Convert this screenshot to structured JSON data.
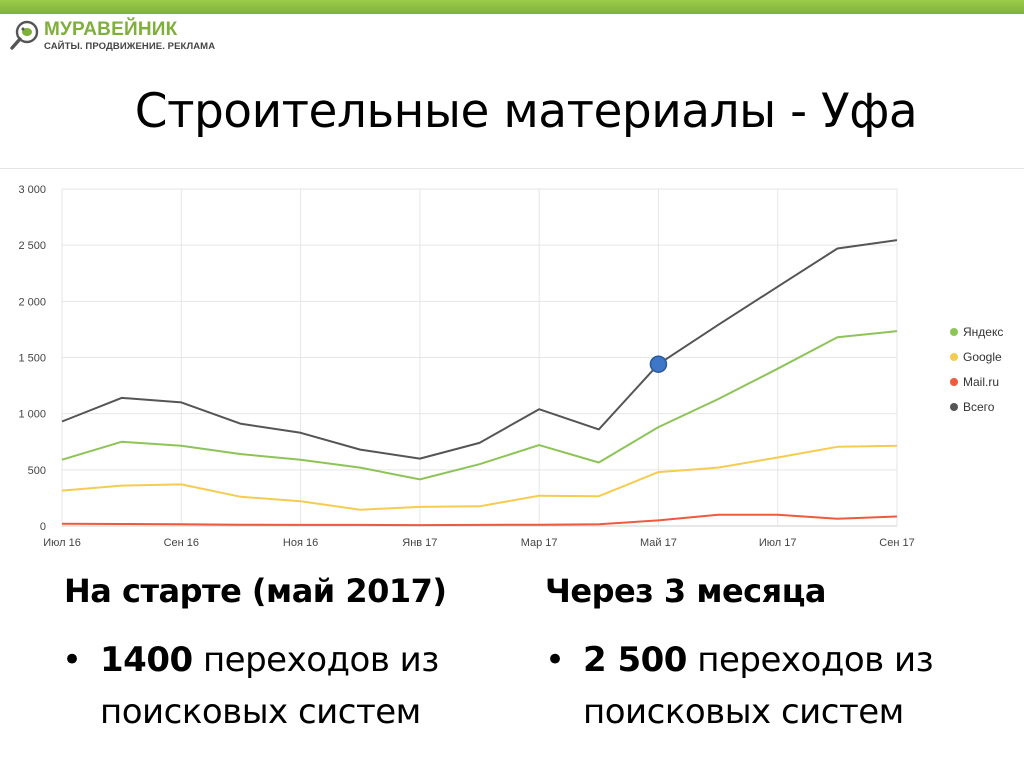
{
  "logo": {
    "name": "МУРАВЕЙНИК",
    "tagline": "САЙТЫ. ПРОДВИЖЕНИЕ. РЕКЛАМА"
  },
  "title": "Строительные материалы - Уфа",
  "chart_data": {
    "type": "line",
    "x": [
      "Июл 16",
      "Авг 16",
      "Сен 16",
      "Окт 16",
      "Ноя 16",
      "Дек 16",
      "Янв 17",
      "Фев 17",
      "Мар 17",
      "Апр 17",
      "Май 17",
      "Июн 17",
      "Июл 17",
      "Авг 17",
      "Сен 17"
    ],
    "x_tick_labels": [
      "Июл 16",
      "Сен 16",
      "Ноя 16",
      "Янв 17",
      "Мар 17",
      "Май 17",
      "Июл 17",
      "Сен 17"
    ],
    "y_tick_labels": [
      "0",
      "500",
      "1 000",
      "1 500",
      "2 000",
      "2 500",
      "3 000"
    ],
    "ylim": [
      0,
      3000
    ],
    "grid": true,
    "legend_position": "right",
    "series": [
      {
        "name": "Яндекс",
        "color": "#8dc457",
        "values": [
          590,
          750,
          715,
          640,
          590,
          520,
          415,
          550,
          720,
          565,
          880,
          1130,
          1400,
          1680,
          1735
        ]
      },
      {
        "name": "Google",
        "color": "#f5cc4f",
        "values": [
          315,
          360,
          370,
          260,
          220,
          145,
          170,
          175,
          270,
          265,
          480,
          520,
          610,
          705,
          715
        ]
      },
      {
        "name": "Mail.ru",
        "color": "#ee5a3c",
        "values": [
          20,
          18,
          15,
          12,
          10,
          10,
          8,
          10,
          12,
          15,
          50,
          100,
          100,
          65,
          85
        ]
      },
      {
        "name": "Всего",
        "color": "#555555",
        "values": [
          930,
          1140,
          1100,
          910,
          830,
          680,
          600,
          740,
          1040,
          860,
          1440,
          1790,
          2130,
          2470,
          2545
        ]
      }
    ],
    "highlight": {
      "series": "Всего",
      "x": "Май 17",
      "value": 1440,
      "color": "#3e77c7"
    }
  },
  "summary": {
    "left": {
      "heading": "На старте (май 2017)",
      "number": "1400",
      "rest_line1": " переходов из",
      "line2": "поисковых систем"
    },
    "right": {
      "heading": "Через 3 месяца",
      "number": "2 500",
      "rest_line1": " переходов из",
      "line2": "поисковых систем"
    },
    "bullet_char": "•"
  }
}
